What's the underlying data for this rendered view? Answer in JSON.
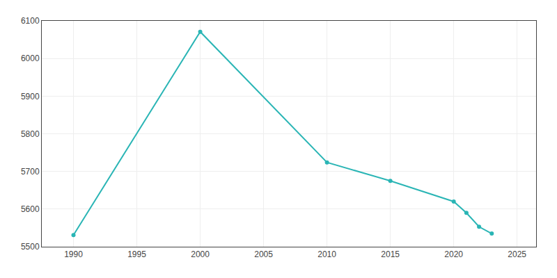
{
  "chart_data": {
    "type": "line",
    "x": [
      1990,
      2000,
      2010,
      2015,
      2020,
      2021,
      2022,
      2023
    ],
    "values": [
      5531,
      6071,
      5724,
      5675,
      5620,
      5590,
      5553,
      5535
    ],
    "color": "#2ab5b5",
    "marker": "circle",
    "xlim": [
      1987.5,
      2026.5
    ],
    "ylim": [
      5500,
      6100
    ],
    "xticks": [
      1990,
      1995,
      2000,
      2005,
      2010,
      2015,
      2020,
      2025
    ],
    "yticks": [
      5500,
      5600,
      5700,
      5800,
      5900,
      6000,
      6100
    ],
    "grid": true
  }
}
